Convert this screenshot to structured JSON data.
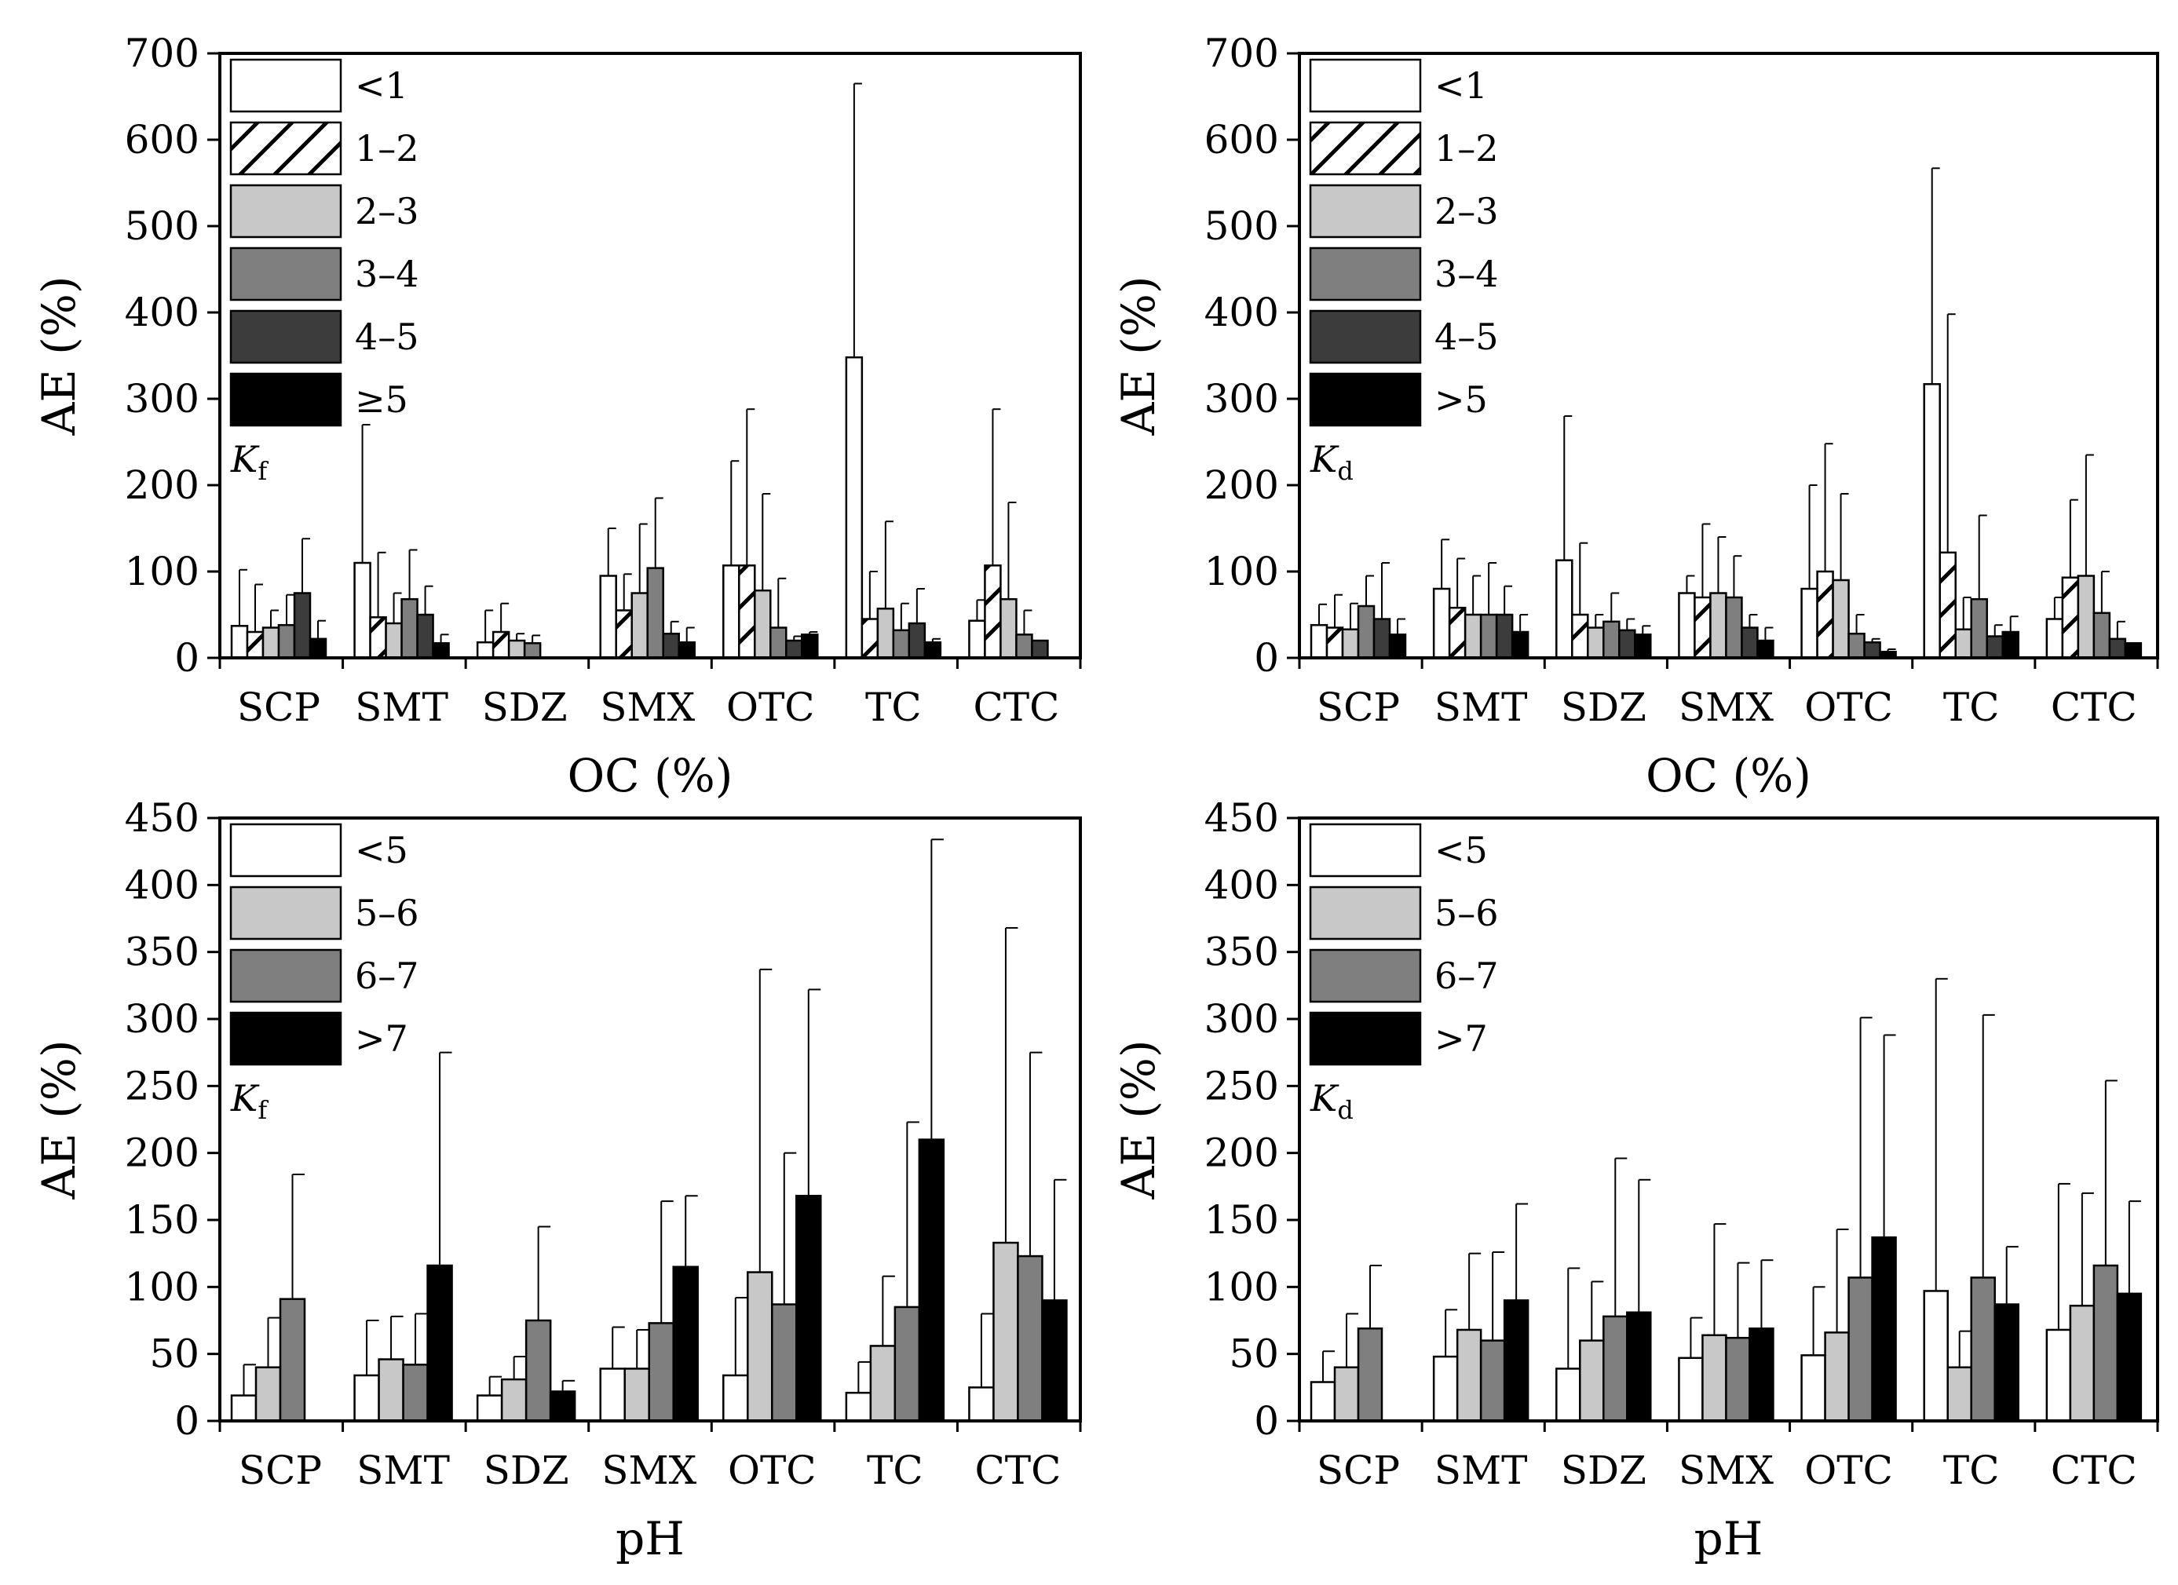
{
  "colors": {
    "white": "#ffffff",
    "light": "#c8c8c8",
    "medium": "#7f7f7f",
    "dark": "#3c3c3c",
    "black": "#000000"
  },
  "chart_data": [
    {
      "type": "bar",
      "panel": "top-left",
      "categories": [
        "SCP",
        "SMT",
        "SDZ",
        "SMX",
        "OTC",
        "TC",
        "CTC"
      ],
      "xlabel": "OC (%)",
      "ylabel": "AE (%)",
      "ylim": [
        0,
        700
      ],
      "yticks": [
        0,
        100,
        200,
        300,
        400,
        500,
        600,
        700
      ],
      "yticklabels": [
        "0",
        "100",
        "200",
        "300",
        "400",
        "500",
        "600",
        "700"
      ],
      "k_label": {
        "main": "K",
        "sub": "f"
      },
      "legend_position": "top-left",
      "series": [
        {
          "name": "<1",
          "fill": "white",
          "values": [
            37,
            110,
            18,
            95,
            107,
            348,
            43
          ],
          "errors": [
            102,
            270,
            55,
            150,
            228,
            665,
            67
          ]
        },
        {
          "name": "1–2",
          "fill": "hatch",
          "values": [
            30,
            47,
            30,
            55,
            107,
            45,
            107
          ],
          "errors": [
            85,
            122,
            63,
            97,
            288,
            100,
            288
          ]
        },
        {
          "name": "2–3",
          "fill": "light",
          "values": [
            35,
            40,
            20,
            75,
            78,
            57,
            68
          ],
          "errors": [
            55,
            75,
            28,
            155,
            190,
            158,
            180
          ]
        },
        {
          "name": "3–4",
          "fill": "medium",
          "values": [
            38,
            68,
            17,
            104,
            35,
            32,
            27
          ],
          "errors": [
            73,
            125,
            26,
            185,
            92,
            63,
            55
          ]
        },
        {
          "name": "4–5",
          "fill": "dark",
          "values": [
            75,
            50,
            null,
            28,
            20,
            40,
            20
          ],
          "errors": [
            138,
            83,
            null,
            42,
            25,
            80,
            20
          ]
        },
        {
          "name": "≥5",
          "fill": "black",
          "values": [
            22,
            17,
            null,
            18,
            27,
            18,
            null
          ],
          "errors": [
            43,
            27,
            null,
            35,
            30,
            22,
            null
          ]
        }
      ]
    },
    {
      "type": "bar",
      "panel": "top-right",
      "categories": [
        "SCP",
        "SMT",
        "SDZ",
        "SMX",
        "OTC",
        "TC",
        "CTC"
      ],
      "xlabel": "OC (%)",
      "ylabel": "AE (%)",
      "ylim": [
        0,
        700
      ],
      "yticks": [
        0,
        100,
        200,
        300,
        400,
        500,
        600,
        700
      ],
      "yticklabels": [
        "0",
        "100",
        "200",
        "300",
        "400",
        "500",
        "600",
        "700"
      ],
      "k_label": {
        "main": "K",
        "sub": "d"
      },
      "legend_position": "top-left",
      "series": [
        {
          "name": "<1",
          "fill": "white",
          "values": [
            38,
            80,
            113,
            75,
            80,
            317,
            45
          ],
          "errors": [
            62,
            137,
            280,
            95,
            200,
            567,
            70
          ]
        },
        {
          "name": "1–2",
          "fill": "hatch",
          "values": [
            35,
            58,
            50,
            70,
            100,
            122,
            93
          ],
          "errors": [
            73,
            115,
            133,
            155,
            248,
            398,
            183
          ]
        },
        {
          "name": "2–3",
          "fill": "light",
          "values": [
            33,
            50,
            35,
            75,
            90,
            33,
            95
          ],
          "errors": [
            63,
            95,
            50,
            140,
            190,
            70,
            235
          ]
        },
        {
          "name": "3–4",
          "fill": "medium",
          "values": [
            60,
            50,
            42,
            70,
            28,
            68,
            52
          ],
          "errors": [
            95,
            110,
            75,
            118,
            50,
            165,
            100
          ]
        },
        {
          "name": "4–5",
          "fill": "dark",
          "values": [
            45,
            50,
            32,
            35,
            18,
            25,
            22
          ],
          "errors": [
            110,
            83,
            45,
            50,
            22,
            38,
            42
          ]
        },
        {
          "name": ">5",
          "fill": "black",
          "values": [
            27,
            30,
            27,
            20,
            7,
            30,
            17
          ],
          "errors": [
            45,
            50,
            37,
            35,
            10,
            48,
            17
          ]
        }
      ]
    },
    {
      "type": "bar",
      "panel": "bottom-left",
      "categories": [
        "SCP",
        "SMT",
        "SDZ",
        "SMX",
        "OTC",
        "TC",
        "CTC"
      ],
      "xlabel": "pH",
      "ylabel": "AE (%)",
      "ylim": [
        0,
        450
      ],
      "yticks": [
        0,
        50,
        100,
        150,
        200,
        250,
        300,
        350,
        400,
        450
      ],
      "yticklabels": [
        "0",
        "50",
        "100",
        "150",
        "200",
        "250",
        "300",
        "350",
        "400",
        "450"
      ],
      "k_label": {
        "main": "K",
        "sub": "f"
      },
      "legend_position": "top-left",
      "series": [
        {
          "name": "<5",
          "fill": "white",
          "values": [
            19,
            34,
            19,
            39,
            34,
            21,
            25
          ],
          "errors": [
            42,
            75,
            33,
            70,
            92,
            44,
            80
          ]
        },
        {
          "name": "5–6",
          "fill": "light",
          "values": [
            40,
            46,
            31,
            39,
            111,
            56,
            133
          ],
          "errors": [
            77,
            78,
            48,
            68,
            337,
            108,
            368
          ]
        },
        {
          "name": "6–7",
          "fill": "medium",
          "values": [
            91,
            42,
            75,
            73,
            87,
            85,
            123
          ],
          "errors": [
            184,
            80,
            145,
            164,
            200,
            223,
            275
          ]
        },
        {
          "name": ">7",
          "fill": "black",
          "values": [
            null,
            116,
            22,
            115,
            168,
            210,
            90
          ],
          "errors": [
            null,
            275,
            30,
            168,
            322,
            434,
            180
          ]
        }
      ]
    },
    {
      "type": "bar",
      "panel": "bottom-right",
      "categories": [
        "SCP",
        "SMT",
        "SDZ",
        "SMX",
        "OTC",
        "TC",
        "CTC"
      ],
      "xlabel": "pH",
      "ylabel": "AE (%)",
      "ylim": [
        0,
        450
      ],
      "yticks": [
        0,
        50,
        100,
        150,
        200,
        250,
        300,
        350,
        400,
        450
      ],
      "yticklabels": [
        "0",
        "50",
        "100",
        "150",
        "200",
        "250",
        "300",
        "350",
        "400",
        "450"
      ],
      "k_label": {
        "main": "K",
        "sub": "d"
      },
      "legend_position": "top-left",
      "series": [
        {
          "name": "<5",
          "fill": "white",
          "values": [
            29,
            48,
            39,
            47,
            49,
            97,
            68
          ],
          "errors": [
            52,
            83,
            114,
            77,
            100,
            330,
            177
          ]
        },
        {
          "name": "5–6",
          "fill": "light",
          "values": [
            40,
            68,
            60,
            64,
            66,
            40,
            86
          ],
          "errors": [
            80,
            125,
            104,
            147,
            143,
            67,
            170
          ]
        },
        {
          "name": "6–7",
          "fill": "medium",
          "values": [
            69,
            60,
            78,
            62,
            107,
            107,
            116
          ],
          "errors": [
            116,
            126,
            196,
            118,
            301,
            303,
            254
          ]
        },
        {
          "name": ">7",
          "fill": "black",
          "values": [
            null,
            90,
            81,
            69,
            137,
            87,
            95
          ],
          "errors": [
            null,
            162,
            180,
            120,
            288,
            130,
            164
          ]
        }
      ]
    }
  ]
}
